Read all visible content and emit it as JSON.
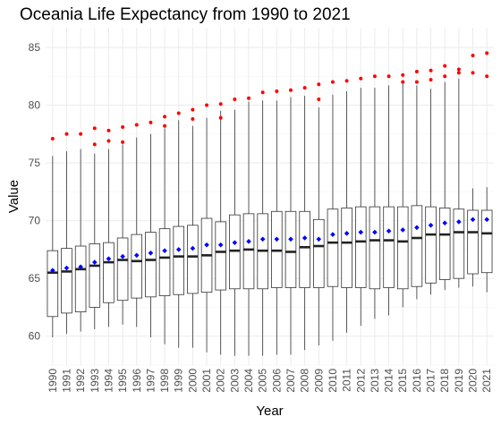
{
  "chart_data": {
    "type": "box",
    "title": "Oceania Life Expectancy from 1990 to 2021",
    "xlabel": "Year",
    "ylabel": "Value",
    "ylim": [
      57.5,
      86.7
    ],
    "yticks": [
      60,
      65,
      70,
      75,
      80,
      85
    ],
    "grid": true,
    "legend": "none",
    "colors": {
      "box_fill": "#ffffff",
      "box_line": "#333333",
      "median": "#222222",
      "mean": "#0000ff",
      "outlier": "#ff0000",
      "grid_major": "#ebebeb",
      "grid_minor": "#f5f5f5"
    },
    "categories": [
      "1990",
      "1991",
      "1992",
      "1993",
      "1994",
      "1995",
      "1996",
      "1997",
      "1998",
      "1999",
      "2000",
      "2001",
      "2002",
      "2003",
      "2004",
      "2005",
      "2006",
      "2007",
      "2008",
      "2009",
      "2010",
      "2011",
      "2012",
      "2013",
      "2014",
      "2015",
      "2016",
      "2017",
      "2018",
      "2019",
      "2020",
      "2021"
    ],
    "boxes": [
      {
        "x": "1990",
        "whisker_low": 59.9,
        "q1": 61.7,
        "median": 65.5,
        "q3": 67.4,
        "whisker_high": 75.6,
        "mean": 65.7,
        "outliers": [
          77.1
        ]
      },
      {
        "x": "1991",
        "whisker_low": 60.2,
        "q1": 62.0,
        "median": 65.6,
        "q3": 67.6,
        "whisker_high": 76.0,
        "mean": 65.9,
        "outliers": [
          77.5
        ]
      },
      {
        "x": "1992",
        "whisker_low": 60.4,
        "q1": 62.1,
        "median": 65.8,
        "q3": 67.8,
        "whisker_high": 76.2,
        "mean": 66.0,
        "outliers": [
          77.5
        ]
      },
      {
        "x": "1993",
        "whisker_low": 60.6,
        "q1": 62.5,
        "median": 66.1,
        "q3": 68.0,
        "whisker_high": 75.8,
        "mean": 66.4,
        "outliers": [
          76.6,
          78.0
        ]
      },
      {
        "x": "1994",
        "whisker_low": 60.8,
        "q1": 62.9,
        "median": 66.4,
        "q3": 68.1,
        "whisker_high": 76.2,
        "mean": 66.7,
        "outliers": [
          76.9,
          77.8
        ]
      },
      {
        "x": "1995",
        "whisker_low": 61.0,
        "q1": 63.1,
        "median": 66.6,
        "q3": 68.5,
        "whisker_high": 76.6,
        "mean": 66.9,
        "outliers": [
          76.8,
          78.1
        ]
      },
      {
        "x": "1996",
        "whisker_low": 60.8,
        "q1": 63.3,
        "median": 66.5,
        "q3": 68.8,
        "whisker_high": 77.2,
        "mean": 67.0,
        "outliers": [
          78.3
        ]
      },
      {
        "x": "1997",
        "whisker_low": 59.9,
        "q1": 63.4,
        "median": 66.6,
        "q3": 69.0,
        "whisker_high": 77.5,
        "mean": 67.2,
        "outliers": [
          78.5
        ]
      },
      {
        "x": "1998",
        "whisker_low": 59.3,
        "q1": 63.5,
        "median": 66.8,
        "q3": 69.3,
        "whisker_high": 78.0,
        "mean": 67.4,
        "outliers": [
          78.2,
          79.0
        ]
      },
      {
        "x": "1999",
        "whisker_low": 59.0,
        "q1": 63.6,
        "median": 66.9,
        "q3": 69.5,
        "whisker_high": 78.7,
        "mean": 67.5,
        "outliers": [
          79.3
        ]
      },
      {
        "x": "2000",
        "whisker_low": 59.0,
        "q1": 63.7,
        "median": 66.9,
        "q3": 69.6,
        "whisker_high": 78.2,
        "mean": 67.6,
        "outliers": [
          78.8,
          79.6
        ]
      },
      {
        "x": "2001",
        "whisker_low": 58.6,
        "q1": 63.8,
        "median": 67.0,
        "q3": 70.2,
        "whisker_high": 78.9,
        "mean": 67.9,
        "outliers": [
          80.0
        ]
      },
      {
        "x": "2002",
        "whisker_low": 58.4,
        "q1": 64.0,
        "median": 67.3,
        "q3": 69.9,
        "whisker_high": 79.5,
        "mean": 67.9,
        "outliers": [
          78.9,
          80.1
        ]
      },
      {
        "x": "2003",
        "whisker_low": 58.3,
        "q1": 64.1,
        "median": 67.4,
        "q3": 70.5,
        "whisker_high": 79.6,
        "mean": 68.1,
        "outliers": [
          80.5
        ]
      },
      {
        "x": "2004",
        "whisker_low": 58.3,
        "q1": 64.1,
        "median": 67.5,
        "q3": 70.6,
        "whisker_high": 80.3,
        "mean": 68.2,
        "outliers": [
          80.6
        ]
      },
      {
        "x": "2005",
        "whisker_low": 58.3,
        "q1": 64.1,
        "median": 67.4,
        "q3": 70.6,
        "whisker_high": 80.4,
        "mean": 68.4,
        "outliers": [
          81.1
        ]
      },
      {
        "x": "2006",
        "whisker_low": 58.4,
        "q1": 64.2,
        "median": 67.4,
        "q3": 70.8,
        "whisker_high": 80.4,
        "mean": 68.4,
        "outliers": [
          81.2
        ]
      },
      {
        "x": "2007",
        "whisker_low": 58.4,
        "q1": 64.2,
        "median": 67.3,
        "q3": 70.8,
        "whisker_high": 80.7,
        "mean": 68.4,
        "outliers": [
          81.3
        ]
      },
      {
        "x": "2008",
        "whisker_low": 58.8,
        "q1": 64.2,
        "median": 67.7,
        "q3": 70.8,
        "whisker_high": 80.8,
        "mean": 68.5,
        "outliers": [
          81.5
        ]
      },
      {
        "x": "2009",
        "whisker_low": 59.2,
        "q1": 64.2,
        "median": 67.8,
        "q3": 70.1,
        "whisker_high": 79.8,
        "mean": 68.4,
        "outliers": [
          80.5,
          81.8
        ]
      },
      {
        "x": "2010",
        "whisker_low": 59.6,
        "q1": 64.3,
        "median": 68.1,
        "q3": 71.0,
        "whisker_high": 80.9,
        "mean": 68.8,
        "outliers": [
          82.0
        ]
      },
      {
        "x": "2011",
        "whisker_low": 60.3,
        "q1": 64.2,
        "median": 68.1,
        "q3": 71.1,
        "whisker_high": 81.2,
        "mean": 68.9,
        "outliers": [
          82.1
        ]
      },
      {
        "x": "2012",
        "whisker_low": 60.9,
        "q1": 64.2,
        "median": 68.2,
        "q3": 71.2,
        "whisker_high": 81.5,
        "mean": 69.0,
        "outliers": [
          82.3
        ]
      },
      {
        "x": "2013",
        "whisker_low": 61.5,
        "q1": 64.1,
        "median": 68.3,
        "q3": 71.2,
        "whisker_high": 81.5,
        "mean": 69.0,
        "outliers": [
          82.5
        ]
      },
      {
        "x": "2014",
        "whisker_low": 61.8,
        "q1": 64.2,
        "median": 68.3,
        "q3": 71.2,
        "whisker_high": 81.7,
        "mean": 69.1,
        "outliers": [
          82.5
        ]
      },
      {
        "x": "2015",
        "whisker_low": 62.5,
        "q1": 64.1,
        "median": 68.2,
        "q3": 71.2,
        "whisker_high": 81.9,
        "mean": 69.2,
        "outliers": [
          82.0,
          82.6
        ]
      },
      {
        "x": "2016",
        "whisker_low": 63.2,
        "q1": 64.3,
        "median": 68.5,
        "q3": 71.3,
        "whisker_high": 81.7,
        "mean": 69.4,
        "outliers": [
          82.0,
          82.9
        ]
      },
      {
        "x": "2017",
        "whisker_low": 63.6,
        "q1": 64.6,
        "median": 68.8,
        "q3": 71.2,
        "whisker_high": 81.4,
        "mean": 69.6,
        "outliers": [
          82.2,
          83.0
        ]
      },
      {
        "x": "2018",
        "whisker_low": 64.0,
        "q1": 64.9,
        "median": 68.8,
        "q3": 71.1,
        "whisker_high": 82.0,
        "mean": 69.8,
        "outliers": [
          82.5,
          83.4
        ]
      },
      {
        "x": "2019",
        "whisker_low": 64.2,
        "q1": 65.0,
        "median": 69.0,
        "q3": 71.0,
        "whisker_high": 82.3,
        "mean": 69.9,
        "outliers": [
          82.8,
          83.1
        ]
      },
      {
        "x": "2020",
        "whisker_low": 64.3,
        "q1": 65.4,
        "median": 69.0,
        "q3": 70.9,
        "whisker_high": 72.8,
        "mean": 70.1,
        "outliers": [
          82.8,
          84.3
        ]
      },
      {
        "x": "2021",
        "whisker_low": 63.8,
        "q1": 65.5,
        "median": 68.9,
        "q3": 70.9,
        "whisker_high": 72.9,
        "mean": 70.1,
        "outliers": [
          82.5,
          84.5
        ]
      }
    ]
  }
}
